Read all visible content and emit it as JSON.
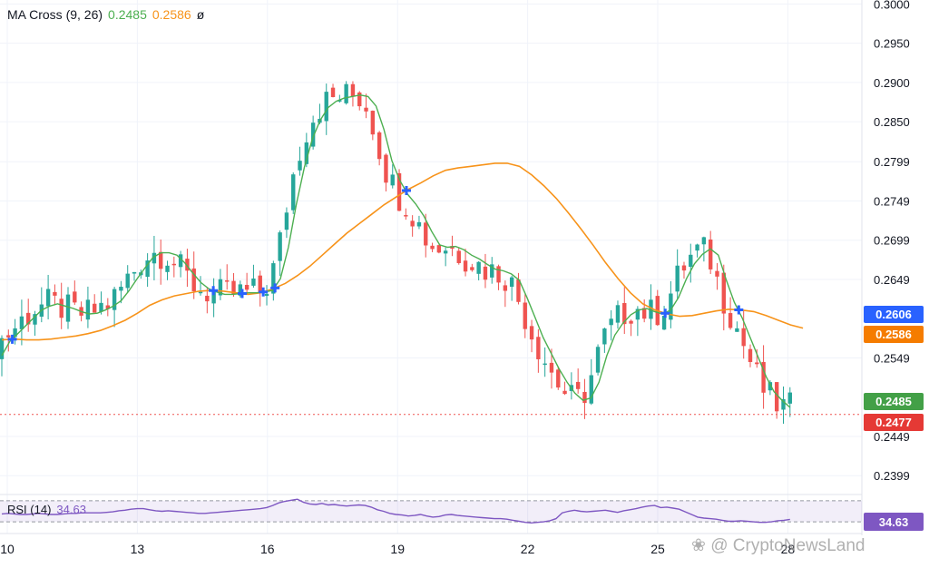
{
  "legend": {
    "indicator": "MA Cross (9, 26)",
    "fast_value": "0.2485",
    "slow_value": "0.2586",
    "symbol": "ø"
  },
  "rsi": {
    "label": "RSI (14)",
    "value": "34.63",
    "badge": "34.63",
    "upper_band": 70,
    "lower_band": 30,
    "values": [
      45,
      46,
      45,
      44,
      44,
      45,
      46,
      45,
      44,
      44,
      45,
      46,
      46,
      47,
      47,
      47,
      47,
      48,
      49,
      51,
      52,
      54,
      55,
      55,
      53,
      51,
      50,
      51,
      50,
      49,
      48,
      47,
      46,
      46,
      47,
      48,
      49,
      50,
      51,
      52,
      53,
      54,
      55,
      57,
      61,
      66,
      69,
      71,
      73,
      67,
      64,
      63,
      65,
      62,
      63,
      61,
      60,
      61,
      62,
      61,
      58,
      53,
      50,
      46,
      44,
      43,
      41,
      42,
      44,
      41,
      39,
      40,
      43,
      44,
      42,
      41,
      40,
      39,
      38,
      37,
      36,
      36,
      35,
      33,
      31,
      29,
      28,
      29,
      30,
      32,
      36,
      47,
      50,
      52,
      50,
      49,
      50,
      51,
      52,
      50,
      48,
      51,
      53,
      55,
      58,
      60,
      61,
      57,
      58,
      56,
      54,
      49,
      44,
      39,
      37,
      36,
      35,
      33,
      31,
      31,
      32,
      31,
      30,
      29,
      29,
      30,
      32,
      33,
      34.63
    ]
  },
  "price_tags": {
    "tag1": "0.2606",
    "tag2": "0.2586",
    "tag3": "0.2485",
    "tag4": "0.2477"
  },
  "colors": {
    "up": "#26a69a",
    "down": "#ef5350",
    "fast_ma": "#4caf50",
    "slow_ma": "#f7931a",
    "rsi": "#7e57c2",
    "cross": "#2962ff",
    "tag_blue": "#2962ff",
    "tag_orange": "#f57c00",
    "tag_green": "#43a047",
    "tag_red": "#e53935"
  },
  "watermark": "CryptoNewsLand",
  "chart_data": {
    "type": "candlestick",
    "x_ticks": [
      "10",
      "13",
      "16",
      "19",
      "22",
      "25",
      "28"
    ],
    "y_ticks": [
      "0.3000",
      "0.2950",
      "0.2900",
      "0.2850",
      "0.2799",
      "0.2749",
      "0.2699",
      "0.2649",
      "0.2549",
      "0.2449",
      "0.2399"
    ],
    "ylim": [
      0.2375,
      0.3005
    ],
    "current_price": 0.2477,
    "series": [
      {
        "name": "MA Cross (9, 26)",
        "values": [
          0.2552,
          0.257,
          0.258,
          0.259,
          0.26,
          0.261,
          0.2615,
          0.2618,
          0.2615,
          0.2612,
          0.2608,
          0.2605,
          0.2606,
          0.261,
          0.2615,
          0.2622,
          0.2635,
          0.265,
          0.2664,
          0.2677,
          0.2683,
          0.2683,
          0.268,
          0.267,
          0.2657,
          0.2645,
          0.2637,
          0.2633,
          0.263,
          0.263,
          0.2631,
          0.2632,
          0.2632,
          0.2633,
          0.2635,
          0.265,
          0.269,
          0.2745,
          0.2792,
          0.2828,
          0.2852,
          0.2868,
          0.2876,
          0.288,
          0.2882,
          0.2884,
          0.2882,
          0.287,
          0.284,
          0.28,
          0.2775,
          0.2757,
          0.2745,
          0.273,
          0.271,
          0.2693,
          0.269,
          0.2691,
          0.2687,
          0.268,
          0.2675,
          0.2668,
          0.2662,
          0.266,
          0.2656,
          0.2648,
          0.2625,
          0.26,
          0.2575,
          0.2555,
          0.2535,
          0.2518,
          0.2504,
          0.2495,
          0.2498,
          0.2518,
          0.2552,
          0.2578,
          0.2593,
          0.2604,
          0.261,
          0.2612,
          0.2608,
          0.2605,
          0.261,
          0.2626,
          0.265,
          0.2669,
          0.2681,
          0.2688,
          0.268,
          0.2648,
          0.262,
          0.26,
          0.2575,
          0.255,
          0.2525,
          0.2506,
          0.2495,
          0.2486
        ]
      },
      {
        "name": "slow",
        "values": [
          0.2572,
          0.2573,
          0.2572,
          0.2572,
          0.2573,
          0.2575,
          0.2577,
          0.258,
          0.2584,
          0.259,
          0.2597,
          0.2606,
          0.2616,
          0.2623,
          0.2628,
          0.2631,
          0.2634,
          0.2635,
          0.2634,
          0.2632,
          0.263,
          0.2632,
          0.2637,
          0.2644,
          0.2654,
          0.2666,
          0.268,
          0.2694,
          0.2708,
          0.272,
          0.2732,
          0.2744,
          0.2754,
          0.2764,
          0.2772,
          0.2781,
          0.2788,
          0.2791,
          0.2793,
          0.2795,
          0.2797,
          0.2797,
          0.2793,
          0.2782,
          0.2768,
          0.2752,
          0.2733,
          0.2713,
          0.2692,
          0.267,
          0.265,
          0.2632,
          0.2618,
          0.261,
          0.2605,
          0.2602,
          0.2603,
          0.2606,
          0.2609,
          0.2611,
          0.261,
          0.2608,
          0.2603,
          0.2597,
          0.2591,
          0.2587
        ]
      }
    ]
  }
}
